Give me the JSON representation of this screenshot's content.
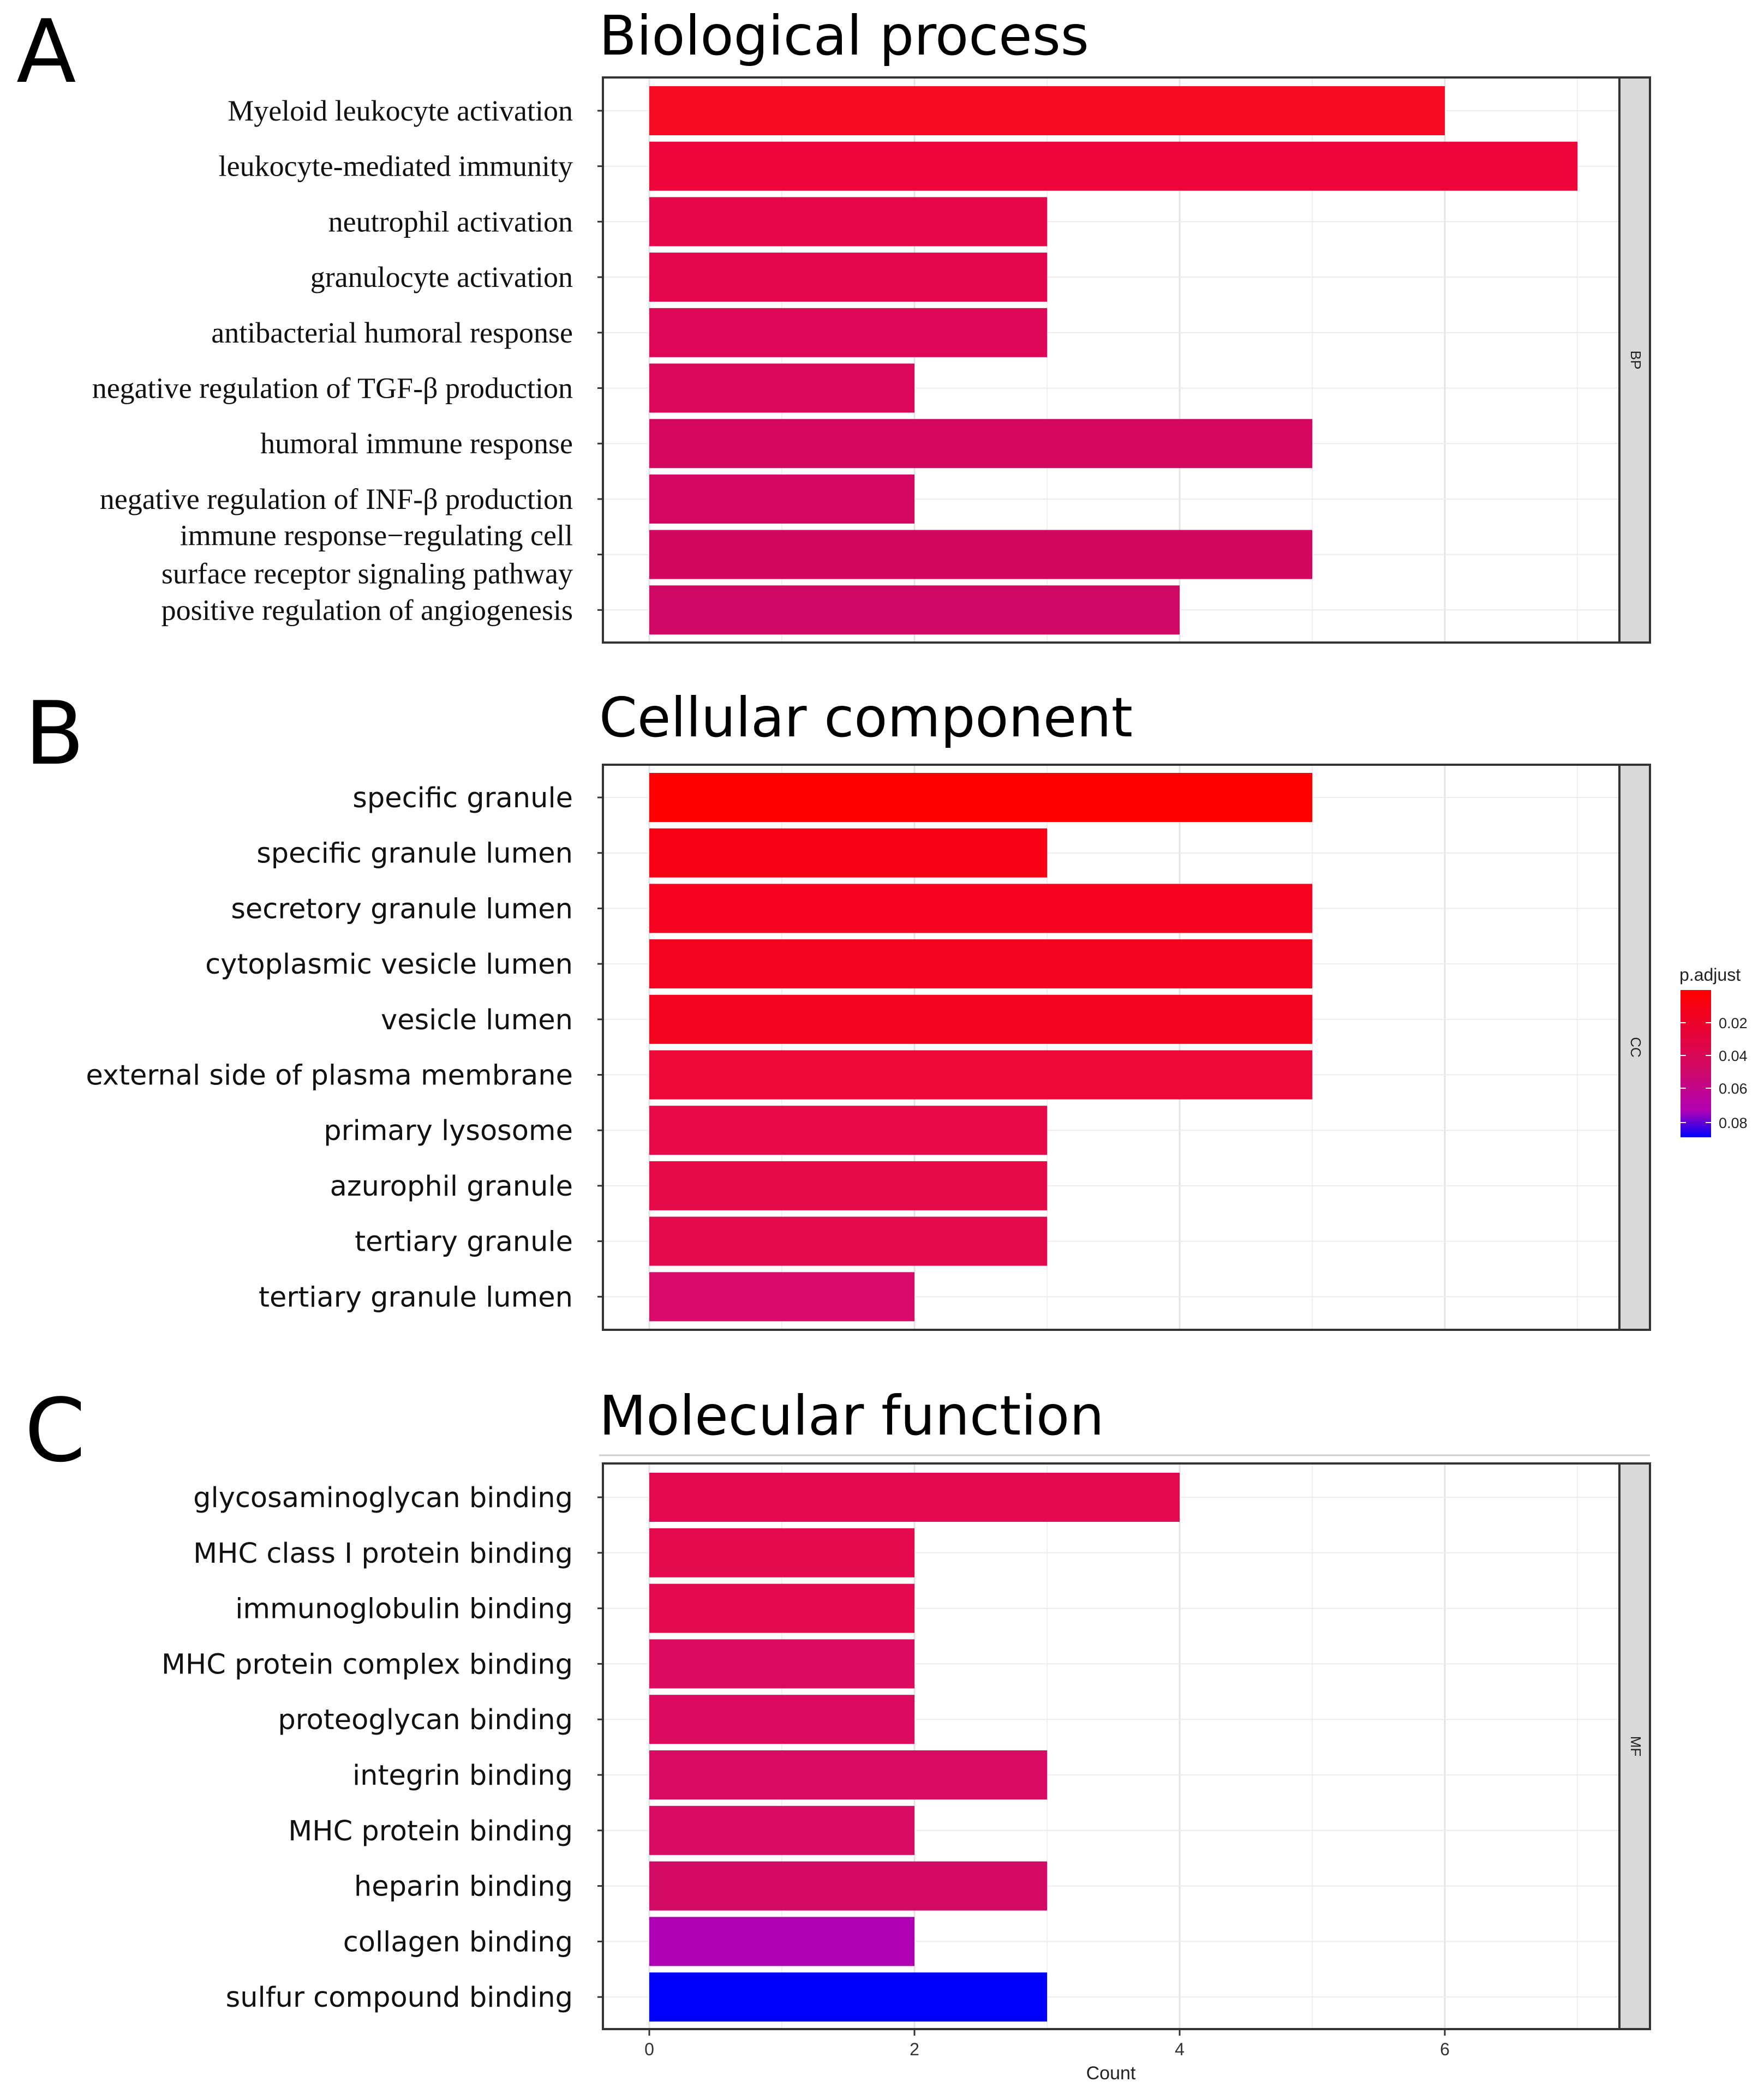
{
  "chart_data": [
    {
      "type": "bar",
      "orientation": "horizontal",
      "panel_label": "A",
      "title": "Biological process",
      "facet": "BP",
      "label_font": "serif",
      "categories": [
        "Myeloid leukocyte activation",
        "leukocyte-mediated immunity",
        "neutrophil activation",
        "granulocyte activation",
        "antibacterial humoral response",
        "negative regulation of TGF-β production",
        "humoral immune response",
        "negative regulation of INF-β production",
        [
          "immune response−regulating cell",
          "surface receptor signaling pathway"
        ],
        "positive regulation of angiogenesis"
      ],
      "values": [
        6,
        7,
        3,
        3,
        3,
        2,
        5,
        2,
        5,
        4
      ],
      "colors": [
        "#f80a22",
        "#ee0539",
        "#e6064a",
        "#e4064c",
        "#de0656",
        "#db075a",
        "#d6075f",
        "#d40763",
        "#d2075f",
        "#d00866"
      ],
      "xlim": [
        -0.35,
        7.55
      ]
    },
    {
      "type": "bar",
      "orientation": "horizontal",
      "panel_label": "B",
      "title": "Cellular component",
      "facet": "CC",
      "label_font": "sans",
      "categories": [
        "specific granule",
        "specific granule lumen",
        "secretory granule lumen",
        "cytoplasmic vesicle lumen",
        "vesicle lumen",
        "external side of plasma membrane",
        "primary lysosome",
        "azurophil granule",
        "tertiary granule",
        "tertiary granule lumen"
      ],
      "values": [
        5,
        3,
        5,
        5,
        5,
        5,
        3,
        3,
        3,
        2
      ],
      "colors": [
        "#ff0000",
        "#fa0215",
        "#f7031f",
        "#f5031f",
        "#f5041f",
        "#ee0838",
        "#e80a48",
        "#e70a48",
        "#e40a4e",
        "#d90a6a"
      ],
      "xlim": [
        -0.35,
        7.55
      ]
    },
    {
      "type": "bar",
      "orientation": "horizontal",
      "panel_label": "C",
      "title": "Molecular function",
      "facet": "MF",
      "label_font": "sans",
      "categories": [
        "glycosaminoglycan binding",
        "MHC class I protein binding",
        "immunoglobulin binding",
        "MHC protein complex binding",
        "proteoglycan binding",
        "integrin binding",
        "MHC protein binding",
        "heparin binding",
        "collagen binding",
        "sulfur compound binding"
      ],
      "values": [
        4,
        2,
        2,
        2,
        2,
        3,
        2,
        3,
        2,
        3
      ],
      "colors": [
        "#e30a4f",
        "#e5094d",
        "#e40a4f",
        "#dc0b60",
        "#dc0b60",
        "#d90a62",
        "#d80a63",
        "#d30b67",
        "#b000b4",
        "#0000ff"
      ],
      "xlim": [
        -0.35,
        7.55
      ],
      "x_ticks": [
        0,
        2,
        4,
        6
      ],
      "xlabel": "Count"
    }
  ],
  "legend": {
    "title": "p.adjust",
    "labels": [
      "0.02",
      "0.04",
      "0.06",
      "0.08"
    ],
    "gradient_top": "#ff0000",
    "gradient_mid": "#b000b4",
    "gradient_bottom": "#0000ff",
    "placement": "right"
  }
}
